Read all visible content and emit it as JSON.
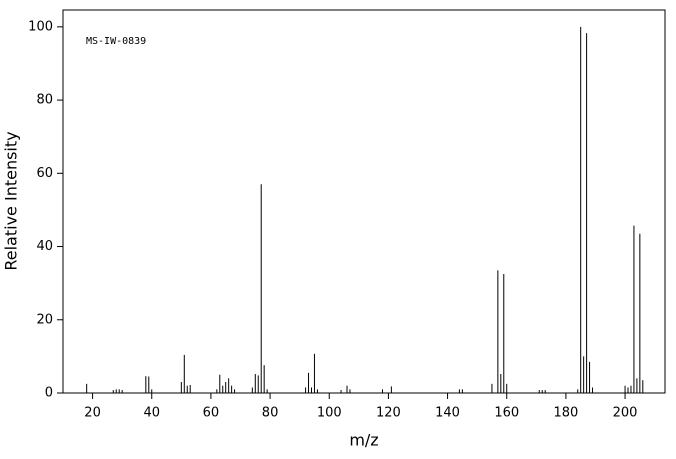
{
  "chart_data": {
    "type": "bar",
    "annotation": "MS-IW-0839",
    "x_label": "m/z",
    "y_label": "Relative Intensity",
    "color": "#000000",
    "x": [
      18,
      27,
      28,
      29,
      30,
      38,
      39,
      40,
      50,
      51,
      52,
      53,
      62,
      63,
      64,
      65,
      66,
      67,
      68,
      74,
      75,
      76,
      77,
      78,
      79,
      92,
      93,
      94,
      95,
      96,
      104,
      106,
      107,
      118,
      121,
      144,
      145,
      155,
      157,
      158,
      159,
      160,
      171,
      172,
      173,
      184,
      185,
      186,
      187,
      188,
      189,
      200,
      201,
      202,
      203,
      204,
      205,
      206
    ],
    "values": [
      2.5,
      0.8,
      1,
      1,
      0.8,
      4.6,
      4.5,
      1,
      3,
      10.4,
      2,
      2.2,
      1,
      5,
      2,
      3,
      4,
      2,
      1,
      1.5,
      5.2,
      4.8,
      57,
      7.6,
      1,
      1.5,
      5.5,
      1.5,
      10.7,
      1,
      0.8,
      2,
      1,
      1,
      1.8,
      1,
      1,
      2.5,
      33.5,
      5.2,
      32.5,
      2.5,
      0.8,
      0.8,
      0.8,
      1,
      100,
      10,
      98.3,
      8.5,
      1.5,
      2,
      1.5,
      2,
      45.7,
      4,
      43.5,
      3.5
    ],
    "xlim": [
      10,
      213.5
    ],
    "xticks": [
      20,
      40,
      60,
      80,
      100,
      120,
      140,
      160,
      180,
      200
    ],
    "ylim": [
      0,
      104.6
    ],
    "yticks": [
      0,
      20,
      40,
      60,
      80,
      100
    ]
  }
}
